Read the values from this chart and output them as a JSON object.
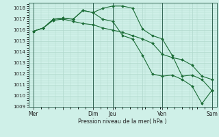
{
  "background_color": "#cff0e8",
  "grid_color": "#b0d8cc",
  "line_color": "#1a6b35",
  "marker_color": "#1a6b35",
  "xlabel_text": "Pression niveau de la mer( hPa )",
  "ylim": [
    1009,
    1018.5
  ],
  "yticks": [
    1009,
    1010,
    1011,
    1012,
    1013,
    1014,
    1015,
    1016,
    1017,
    1018
  ],
  "xtick_labels": [
    "Mer",
    "",
    "Dim",
    "Jeu",
    "",
    "Ven",
    "",
    "Sam"
  ],
  "xtick_positions": [
    0,
    3,
    6,
    8,
    11,
    13,
    16,
    18
  ],
  "vlines_x": [
    0,
    6,
    8,
    13,
    18
  ],
  "series": [
    {
      "x": [
        0,
        1,
        2,
        3,
        4,
        5,
        6,
        7,
        8,
        9,
        10,
        11,
        12,
        13,
        14,
        15,
        16,
        17,
        18
      ],
      "y": [
        1015.9,
        1016.2,
        1016.9,
        1017.0,
        1016.8,
        1016.6,
        1016.5,
        1016.2,
        1016.0,
        1015.8,
        1015.5,
        1015.2,
        1014.8,
        1013.8,
        1013.5,
        1013.3,
        1012.8,
        1011.8,
        1011.5
      ]
    },
    {
      "x": [
        0,
        1,
        2,
        3,
        4,
        5,
        6,
        7,
        8,
        9,
        10,
        11,
        12,
        13,
        14,
        15,
        16,
        17,
        18
      ],
      "y": [
        1015.9,
        1016.2,
        1017.0,
        1017.1,
        1017.0,
        1017.8,
        1017.6,
        1017.0,
        1016.8,
        1015.5,
        1015.2,
        1013.7,
        1012.0,
        1011.8,
        1011.9,
        1011.5,
        1010.9,
        1009.3,
        1010.5
      ]
    },
    {
      "x": [
        0,
        1,
        2,
        3,
        4,
        5,
        6,
        7,
        8,
        9,
        10,
        11,
        12,
        13,
        14,
        15,
        16,
        17,
        18
      ],
      "y": [
        1015.9,
        1016.2,
        1017.0,
        1017.1,
        1017.0,
        1017.8,
        1017.6,
        1018.0,
        1018.2,
        1018.2,
        1018.0,
        1016.1,
        1015.5,
        1015.2,
        1013.7,
        1011.8,
        1011.9,
        1011.5,
        1010.5
      ]
    }
  ],
  "figsize": [
    3.2,
    2.0
  ],
  "dpi": 100
}
